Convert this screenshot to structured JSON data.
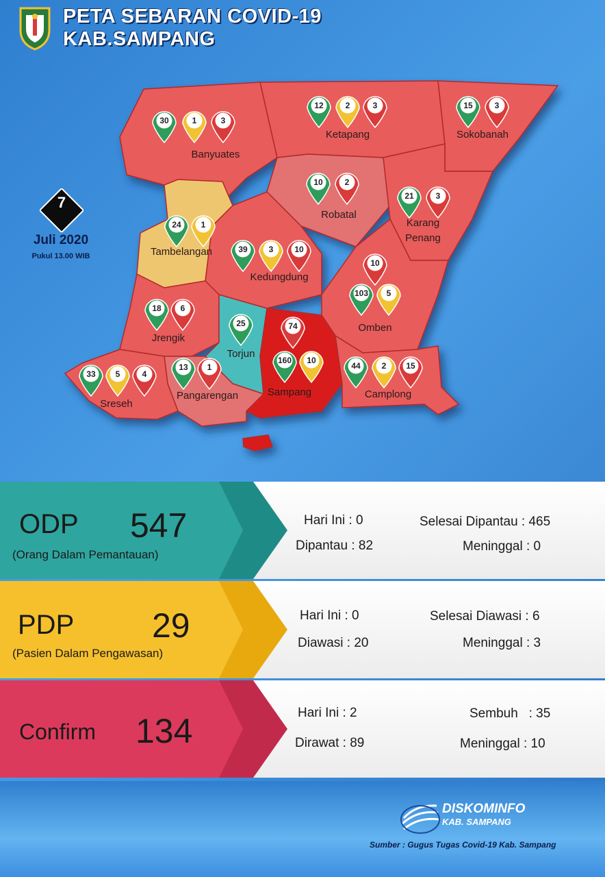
{
  "header": {
    "title_line1": "PETA SEBARAN COVID-19",
    "title_line2": "KAB.SAMPANG"
  },
  "date": {
    "day": "7",
    "month_year": "Juli 2020",
    "time": "Pukul 13.00 WIB"
  },
  "legend_colors": {
    "odp": "#2e9c5a",
    "pdp": "#f1c232",
    "confirm": "#d93a3a"
  },
  "regions": [
    {
      "name": "Banyuates",
      "odp": "30",
      "pdp": "1",
      "confirm": "3"
    },
    {
      "name": "Ketapang",
      "odp": "12",
      "pdp": "2",
      "confirm": "3"
    },
    {
      "name": "Sokobanah",
      "odp": "15",
      "confirm": "3"
    },
    {
      "name": "Robatal",
      "odp": "10",
      "confirm": "2"
    },
    {
      "name": "Karang Penang",
      "odp": "21",
      "confirm": "3"
    },
    {
      "name": "Tambelangan",
      "odp": "24",
      "pdp": "1"
    },
    {
      "name": "Kedungdung",
      "odp": "39",
      "pdp": "3",
      "confirm": "10"
    },
    {
      "name": "Omben",
      "odp": "103",
      "pdp": "5",
      "confirm": "10"
    },
    {
      "name": "Jrengik",
      "odp": "18",
      "confirm": "6"
    },
    {
      "name": "Torjun",
      "odp": "25"
    },
    {
      "name": "Sampang",
      "odp": "160",
      "pdp": "10",
      "confirm": "74"
    },
    {
      "name": "Camplong",
      "odp": "44",
      "pdp": "2",
      "confirm": "15"
    },
    {
      "name": "Sreseh",
      "odp": "33",
      "pdp": "5",
      "confirm": "4"
    },
    {
      "name": "Pangarengan",
      "odp": "13",
      "confirm": "1"
    }
  ],
  "stats": {
    "odp": {
      "label": "ODP",
      "total": "547",
      "subtitle": "(Orang Dalam Pemantauan)",
      "hari_ini": "Hari Ini : 0",
      "dipantau": "Dipantau : 82",
      "selesai": "Selesai Dipantau : 465",
      "meninggal": "Meninggal : 0"
    },
    "pdp": {
      "label": "PDP",
      "total": "29",
      "subtitle": "(Pasien Dalam Pengawasan)",
      "hari_ini": "Hari Ini : 0",
      "diawasi": "Diawasi : 20",
      "selesai": "Selesai Diawasi : 6",
      "meninggal": "Meninggal : 3"
    },
    "confirm": {
      "label": "Confirm",
      "total": "134",
      "hari_ini": "Hari Ini : 2",
      "dirawat": "Dirawat : 89",
      "sembuh": "Sembuh   : 35",
      "meninggal": "Meninggal : 10"
    }
  },
  "footer": {
    "brand": "DISKOMINFO",
    "brand_sub": "KAB. SAMPANG",
    "source": "Sumber : Gugus Tugas Covid-19 Kab. Sampang"
  }
}
